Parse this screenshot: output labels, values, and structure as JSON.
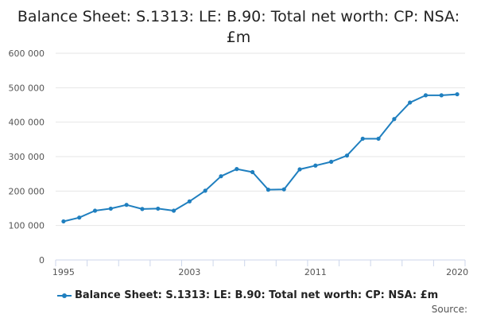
{
  "chart_data": {
    "type": "line",
    "title": "Balance Sheet: S.1313: LE: B.90: Total net worth: CP: NSA: £m",
    "xlabel": "",
    "ylabel": "",
    "ylim": [
      0,
      600000
    ],
    "yticks": [
      0,
      100000,
      200000,
      300000,
      400000,
      500000,
      600000
    ],
    "ytick_labels": [
      "0",
      "100 000",
      "200 000",
      "300 000",
      "400 000",
      "500 000",
      "600 000"
    ],
    "xtick_labels": [
      {
        "year": 1995,
        "label": "1995"
      },
      {
        "year": 2003,
        "label": "2003"
      },
      {
        "year": 2011,
        "label": "2011"
      },
      {
        "year": 2020,
        "label": "2020"
      }
    ],
    "series": [
      {
        "name": "Balance Sheet: S.1313: LE: B.90: Total net worth: CP: NSA: £m",
        "color": "#1f7fbf",
        "x": [
          1995,
          1996,
          1997,
          1998,
          1999,
          2000,
          2001,
          2002,
          2003,
          2004,
          2005,
          2006,
          2007,
          2008,
          2009,
          2010,
          2011,
          2012,
          2013,
          2014,
          2015,
          2016,
          2017,
          2018,
          2019,
          2020
        ],
        "values": [
          112000,
          123000,
          143000,
          149000,
          160000,
          148000,
          149000,
          143000,
          170000,
          201000,
          243000,
          264000,
          255000,
          204000,
          205000,
          263000,
          274000,
          285000,
          303000,
          352000,
          352000,
          409000,
          457000,
          478000,
          478000,
          481000
        ]
      }
    ],
    "legend_position": "bottom",
    "grid": true
  },
  "source_label": "Source:"
}
